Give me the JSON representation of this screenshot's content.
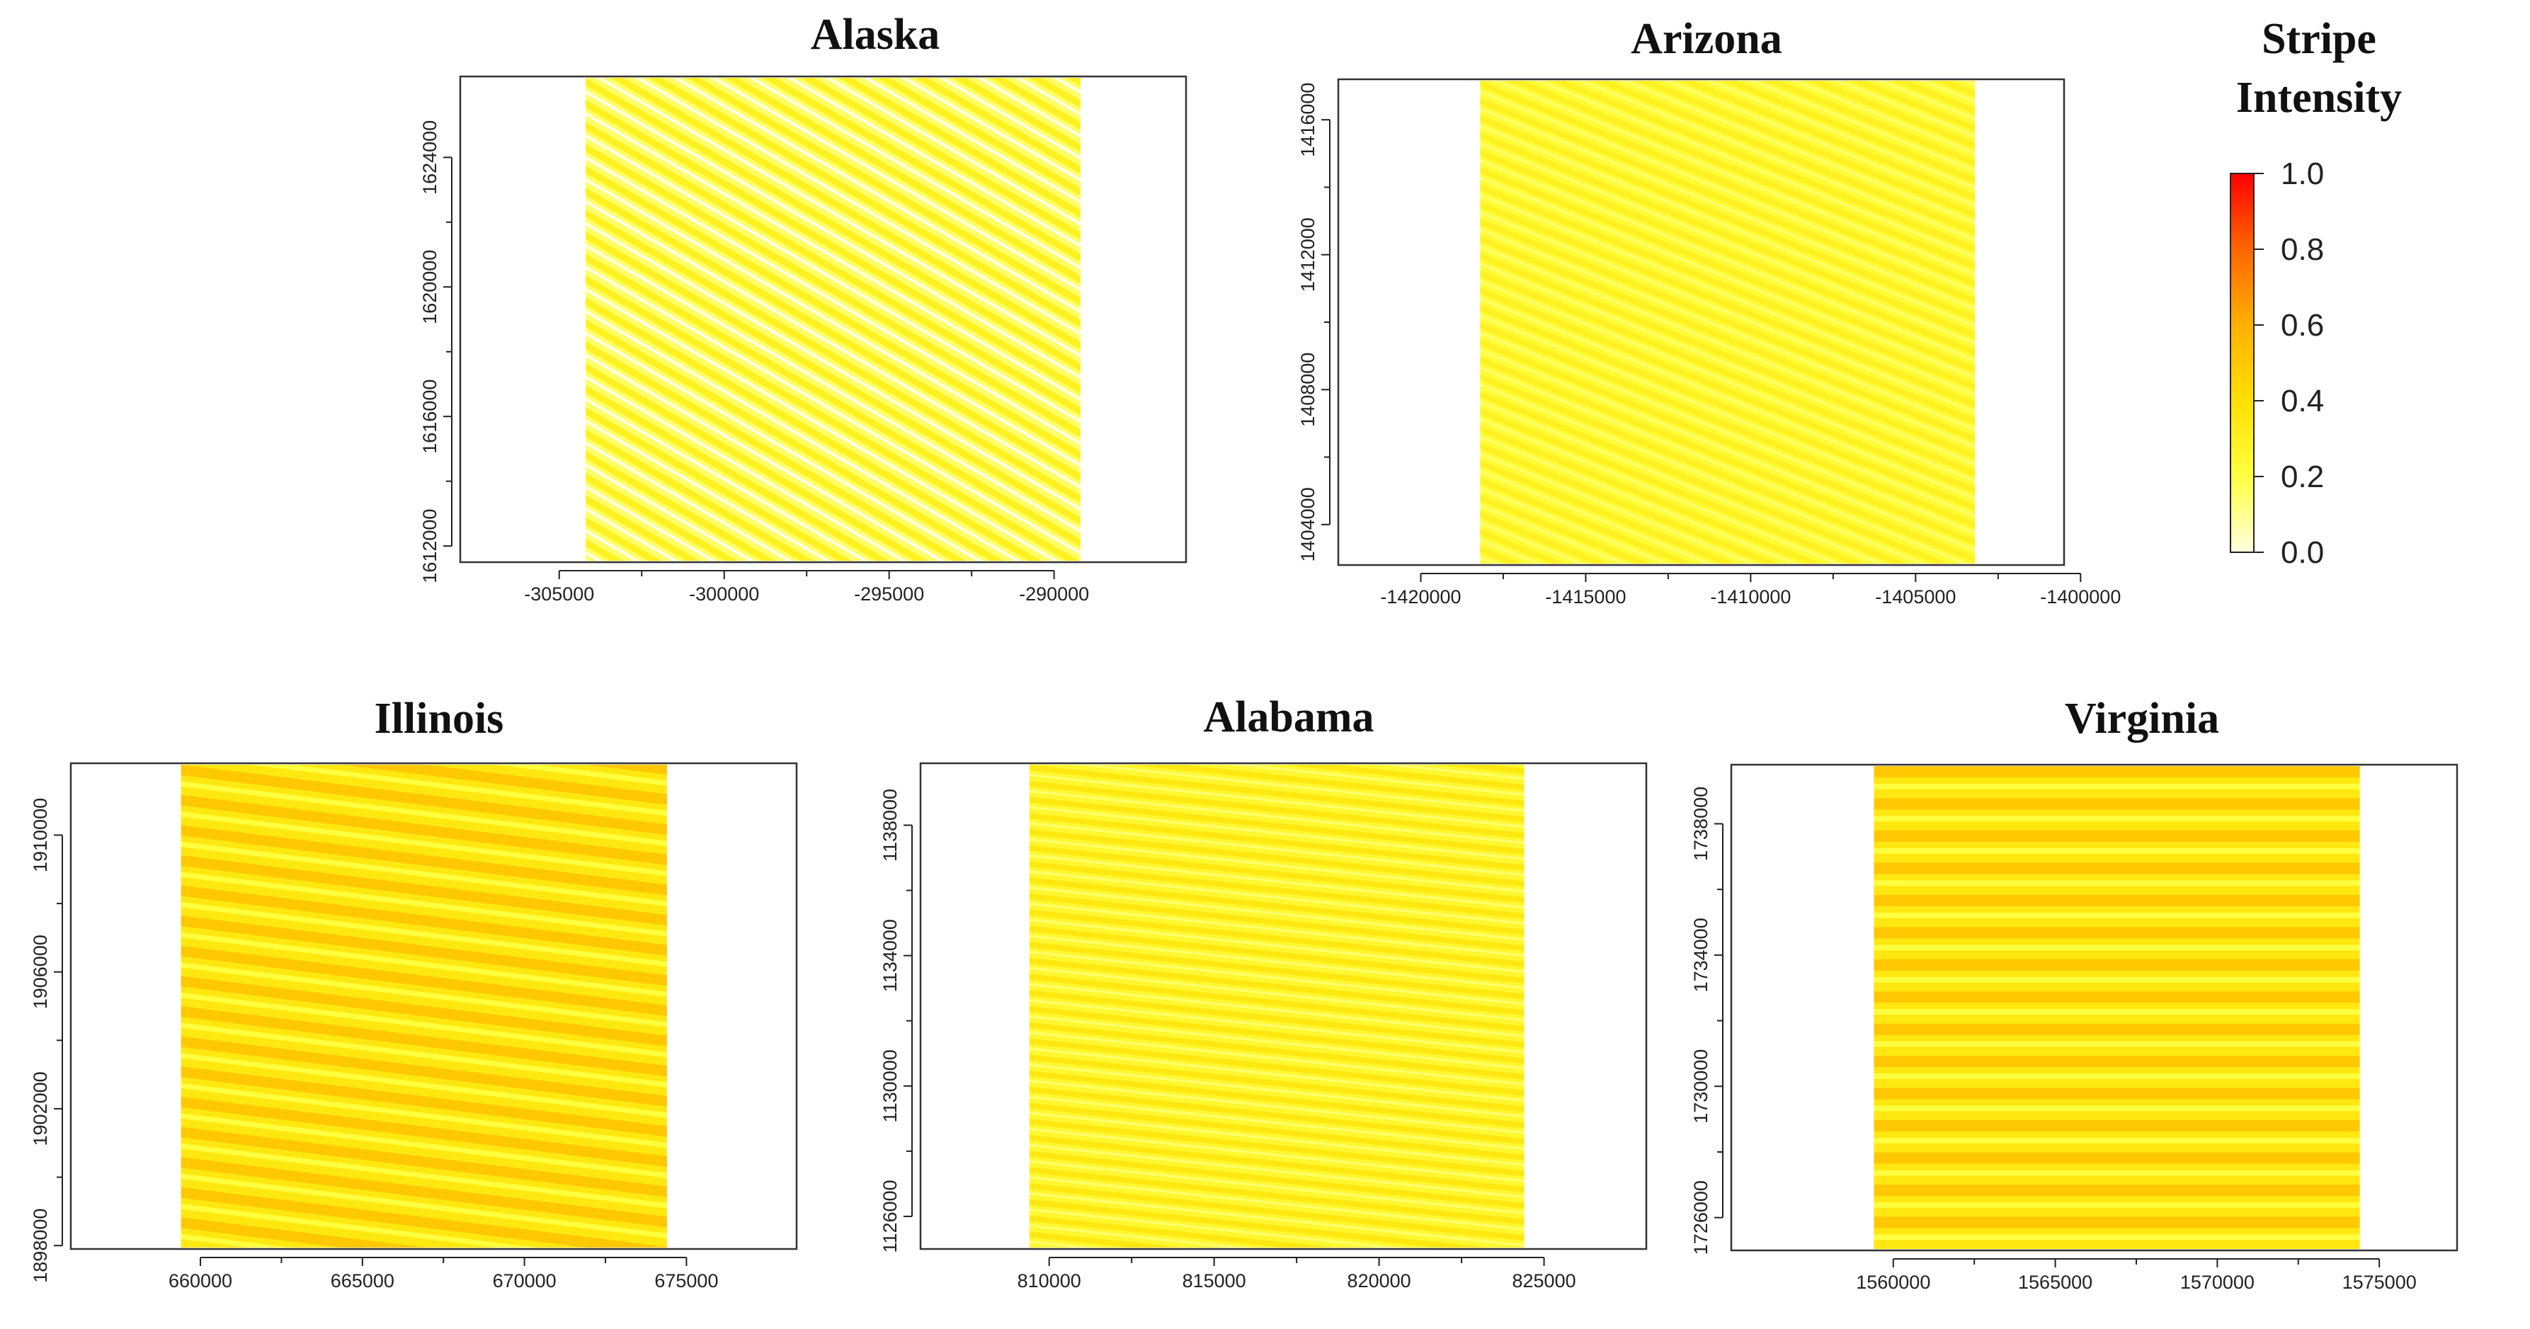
{
  "chart_data": [
    {
      "type": "heatmap",
      "title": "Alaska",
      "xlim": [
        -308000,
        -286000
      ],
      "ylim": [
        1611500,
        1626500
      ],
      "x_ticks": [
        -305000,
        -300000,
        -295000,
        -290000
      ],
      "x_tick_labels": [
        "-305000",
        "-300000",
        "-295000",
        "-290000"
      ],
      "y_ticks": [
        1612000,
        1616000,
        1620000,
        1624000
      ],
      "y_tick_labels": [
        "1612000",
        "1616000",
        "1620000",
        "1624000"
      ],
      "raster_x_range": [
        -304200,
        -289200
      ],
      "stripe_angle_deg": 30,
      "stripe_count": 22,
      "intensity_range": [
        0.0,
        0.3
      ],
      "xlabel": "",
      "ylabel": ""
    },
    {
      "type": "heatmap",
      "title": "Arizona",
      "xlim": [
        -1422500,
        -1400500
      ],
      "ylim": [
        1402800,
        1417200
      ],
      "x_ticks": [
        -1420000,
        -1415000,
        -1410000,
        -1405000,
        -1400000
      ],
      "x_tick_labels": [
        "-1420000",
        "-1415000",
        "-1410000",
        "-1405000",
        "-1400000"
      ],
      "y_ticks": [
        1404000,
        1408000,
        1412000,
        1416000
      ],
      "y_tick_labels": [
        "1404000",
        "1408000",
        "1412000",
        "1416000"
      ],
      "raster_x_range": [
        -1418200,
        -1403200
      ],
      "stripe_angle_deg": 22,
      "stripe_count": 28,
      "intensity_range": [
        0.15,
        0.3
      ],
      "xlabel": "",
      "ylabel": ""
    },
    {
      "type": "heatmap",
      "title": "Illinois",
      "xlim": [
        656000,
        678400
      ],
      "ylim": [
        1897900,
        1912100
      ],
      "x_ticks": [
        660000,
        665000,
        670000,
        675000
      ],
      "x_tick_labels": [
        "660000",
        "665000",
        "670000",
        "675000"
      ],
      "y_ticks": [
        1898000,
        1902000,
        1906000,
        1910000
      ],
      "y_tick_labels": [
        "1898000",
        "1902000",
        "1906000",
        "1910000"
      ],
      "raster_x_range": [
        659400,
        674400
      ],
      "stripe_angle_deg": 7,
      "stripe_count": 16,
      "intensity_range": [
        0.2,
        0.5
      ],
      "xlabel": "",
      "ylabel": ""
    },
    {
      "type": "heatmap",
      "title": "Alabama",
      "xlim": [
        806100,
        828100
      ],
      "ylim": [
        1125000,
        1139900
      ],
      "x_ticks": [
        810000,
        815000,
        820000,
        825000
      ],
      "x_tick_labels": [
        "810000",
        "815000",
        "820000",
        "825000"
      ],
      "y_ticks": [
        1126000,
        1130000,
        1134000,
        1138000
      ],
      "y_tick_labels": [
        "1126000",
        "1130000",
        "1134000",
        "1138000"
      ],
      "raster_x_range": [
        809400,
        824400
      ],
      "stripe_angle_deg": 6,
      "stripe_count": 30,
      "intensity_range": [
        0.15,
        0.35
      ],
      "xlabel": "",
      "ylabel": ""
    },
    {
      "type": "heatmap",
      "title": "Virginia",
      "xlim": [
        1555000,
        1577400
      ],
      "ylim": [
        1725000,
        1739800
      ],
      "x_ticks": [
        1560000,
        1565000,
        1570000,
        1575000
      ],
      "x_tick_labels": [
        "1560000",
        "1565000",
        "1570000",
        "1575000"
      ],
      "y_ticks": [
        1726000,
        1730000,
        1734000,
        1738000
      ],
      "y_tick_labels": [
        "1726000",
        "1730000",
        "1734000",
        "1738000"
      ],
      "raster_x_range": [
        1559400,
        1574400
      ],
      "stripe_angle_deg": 0,
      "stripe_count": 15,
      "intensity_range": [
        0.2,
        0.5
      ],
      "xlabel": "",
      "ylabel": ""
    }
  ],
  "legend": {
    "title_line1": "Stripe",
    "title_line2": "Intensity",
    "ticks": [
      1.0,
      0.8,
      0.6,
      0.4,
      0.2,
      0.0
    ],
    "tick_labels": [
      "1.0",
      "0.8",
      "0.6",
      "0.4",
      "0.2",
      "0.0"
    ],
    "colors": [
      "#ff0000",
      "#ff6600",
      "#ffb000",
      "#ffe000",
      "#ffff40",
      "#ffffe0"
    ]
  }
}
